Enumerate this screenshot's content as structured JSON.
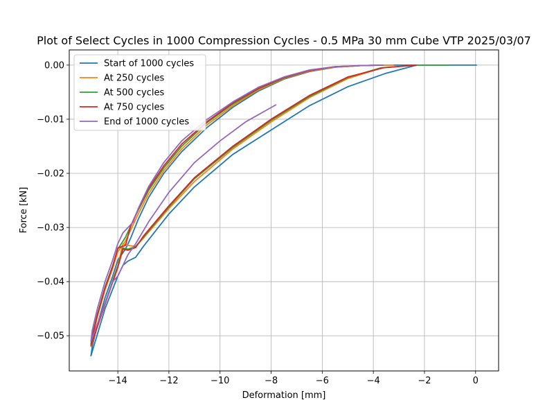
{
  "chart_data": {
    "type": "line",
    "title": "Plot of Select Cycles in 1000 Compression Cycles - 0.5 MPa 30 mm Cube VTP 2025/03/07",
    "xlabel": "Deformation [mm]",
    "ylabel": "Force [kN]",
    "xlim": [
      -15.9,
      0.9
    ],
    "ylim": [
      -0.0565,
      0.0028
    ],
    "xticks": [
      -14,
      -12,
      -10,
      -8,
      -6,
      -4,
      -2,
      0
    ],
    "yticks": [
      0.0,
      -0.01,
      -0.02,
      -0.03,
      -0.04,
      -0.05
    ],
    "xtick_labels": [
      "−14",
      "−12",
      "−10",
      "−8",
      "−6",
      "−4",
      "−2",
      "0"
    ],
    "ytick_labels": [
      "0.00",
      "−0.01",
      "−0.02",
      "−0.03",
      "−0.04",
      "−0.05"
    ],
    "grid": true,
    "legend_position": "top-left",
    "series": [
      {
        "name": "Start of 1000 cycles",
        "color": "#1f77b4",
        "x": [
          0.05,
          -2.3,
          -3.5,
          -5.0,
          -6.5,
          -8.0,
          -9.5,
          -11.0,
          -12.0,
          -13.0,
          -13.3,
          -13.6,
          -13.8,
          -14.0,
          -14.5,
          -15.05,
          -15.0,
          -14.8,
          -14.5,
          -14.2,
          -14.0,
          -13.7,
          -13.5,
          -13.2,
          -12.8,
          -12.2,
          -11.5,
          -10.5,
          -9.5,
          -8.5,
          -7.5,
          -6.5,
          -5.5,
          -4.5,
          -3.5,
          -2.6,
          -2.3,
          0.05
        ],
        "y": [
          0.0,
          0.0,
          -0.0015,
          -0.004,
          -0.0075,
          -0.012,
          -0.0165,
          -0.0225,
          -0.0275,
          -0.0335,
          -0.0355,
          -0.0362,
          -0.037,
          -0.039,
          -0.045,
          -0.0537,
          -0.052,
          -0.048,
          -0.043,
          -0.039,
          -0.036,
          -0.034,
          -0.032,
          -0.0285,
          -0.0245,
          -0.02,
          -0.016,
          -0.0115,
          -0.0078,
          -0.0048,
          -0.0026,
          -0.0012,
          -0.0004,
          -0.0001,
          0.0,
          0.0,
          0.0,
          0.0
        ]
      },
      {
        "name": "At 250 cycles",
        "color": "#ff7f0e",
        "x": [
          -3.8,
          -5.0,
          -6.5,
          -8.0,
          -9.5,
          -11.0,
          -12.0,
          -13.0,
          -13.3,
          -13.6,
          -13.8,
          -14.0,
          -14.5,
          -15.05,
          -15.0,
          -14.8,
          -14.5,
          -14.2,
          -14.0,
          -13.7,
          -13.5,
          -13.2,
          -12.8,
          -12.2,
          -11.5,
          -10.5,
          -9.5,
          -8.5,
          -7.5,
          -6.5,
          -5.5,
          -4.5,
          -3.8,
          -3.2
        ],
        "y": [
          -0.0007,
          -0.0025,
          -0.006,
          -0.0105,
          -0.0155,
          -0.0215,
          -0.0265,
          -0.032,
          -0.0335,
          -0.0333,
          -0.033,
          -0.037,
          -0.044,
          -0.052,
          -0.0505,
          -0.0465,
          -0.0415,
          -0.0375,
          -0.0345,
          -0.0325,
          -0.0305,
          -0.0275,
          -0.0238,
          -0.0195,
          -0.0155,
          -0.011,
          -0.0075,
          -0.0046,
          -0.0025,
          -0.0011,
          -0.0004,
          -0.0001,
          0.0,
          0.0
        ]
      },
      {
        "name": "At 500 cycles",
        "color": "#2ca02c",
        "x": [
          -1.0,
          -2.3,
          -3.7,
          -5.0,
          -6.5,
          -8.0,
          -9.5,
          -11.0,
          -12.0,
          -13.0,
          -13.3,
          -13.6,
          -13.8,
          -14.0,
          -14.5,
          -15.05,
          -15.0,
          -14.8,
          -14.5,
          -14.2,
          -14.0,
          -13.7,
          -13.5,
          -13.2,
          -12.8,
          -12.2,
          -11.5,
          -10.5,
          -9.5,
          -8.5,
          -7.5,
          -6.5,
          -5.5,
          -4.5,
          -3.7
        ],
        "y": [
          0.0,
          0.0,
          -0.0005,
          -0.0023,
          -0.0058,
          -0.0102,
          -0.0152,
          -0.021,
          -0.0262,
          -0.0318,
          -0.0335,
          -0.034,
          -0.0338,
          -0.0372,
          -0.044,
          -0.0515,
          -0.05,
          -0.046,
          -0.041,
          -0.037,
          -0.034,
          -0.0318,
          -0.0298,
          -0.0268,
          -0.0232,
          -0.019,
          -0.015,
          -0.0106,
          -0.0072,
          -0.0044,
          -0.0024,
          -0.001,
          -0.0003,
          -0.0001,
          0.0
        ]
      },
      {
        "name": "At 750 cycles",
        "color": "#d62728",
        "x": [
          -2.3,
          -3.6,
          -5.0,
          -6.5,
          -8.0,
          -9.5,
          -11.0,
          -12.0,
          -13.0,
          -13.3,
          -13.6,
          -13.8,
          -14.0,
          -14.5,
          -15.05,
          -15.0,
          -14.8,
          -14.5,
          -14.2,
          -14.0,
          -13.7,
          -13.5,
          -13.2,
          -12.8,
          -12.2,
          -11.5,
          -10.5,
          -9.5,
          -8.5,
          -7.5,
          -6.5,
          -5.5,
          -4.5,
          -3.6
        ],
        "y": [
          0.0,
          -0.0005,
          -0.0022,
          -0.0056,
          -0.01,
          -0.015,
          -0.0208,
          -0.026,
          -0.0316,
          -0.0337,
          -0.0342,
          -0.034,
          -0.0374,
          -0.0442,
          -0.0518,
          -0.0502,
          -0.0462,
          -0.0412,
          -0.0372,
          -0.0338,
          -0.0333,
          -0.0298,
          -0.0266,
          -0.0228,
          -0.0186,
          -0.0146,
          -0.0104,
          -0.007,
          -0.0043,
          -0.0023,
          -0.001,
          -0.0003,
          -0.0001,
          0.0
        ]
      },
      {
        "name": "End of 1000 cycles",
        "color": "#9467bd",
        "x": [
          -7.8,
          -9.0,
          -10.0,
          -11.0,
          -12.0,
          -12.8,
          -13.3,
          -13.6,
          -13.8,
          -14.0,
          -14.2,
          -14.5,
          -15.05,
          -15.0,
          -14.8,
          -14.5,
          -14.2,
          -14.0,
          -13.8,
          -13.6,
          -13.4,
          -13.2,
          -12.8,
          -12.2,
          -11.5,
          -10.5,
          -9.5,
          -8.5,
          -7.5,
          -6.5,
          -5.5,
          -4.5,
          -3.6
        ],
        "y": [
          -0.0073,
          -0.0105,
          -0.014,
          -0.018,
          -0.0235,
          -0.029,
          -0.033,
          -0.035,
          -0.037,
          -0.039,
          -0.04,
          -0.044,
          -0.051,
          -0.049,
          -0.045,
          -0.04,
          -0.036,
          -0.033,
          -0.031,
          -0.03,
          -0.029,
          -0.0265,
          -0.0225,
          -0.018,
          -0.014,
          -0.01,
          -0.0068,
          -0.0041,
          -0.0022,
          -0.0009,
          -0.0003,
          -0.0001,
          0.0
        ]
      }
    ]
  }
}
